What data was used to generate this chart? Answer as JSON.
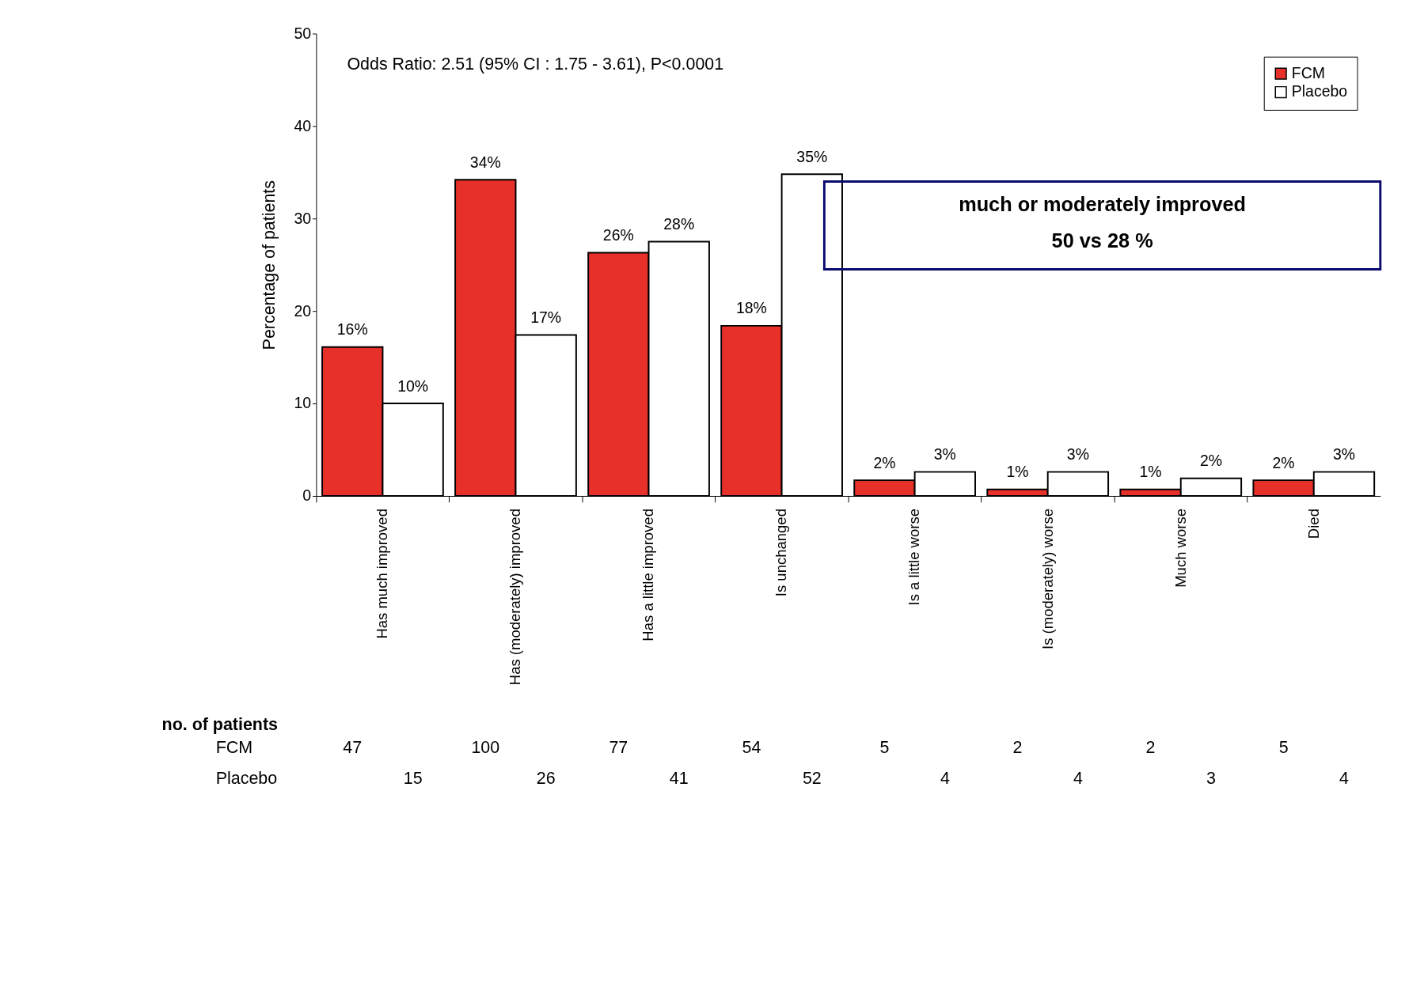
{
  "chart_data": {
    "type": "bar",
    "ylabel": "Percentage of patients",
    "categories": [
      "Has much improved",
      "Has (moderately) improved",
      "Has a little improved",
      "Is unchanged",
      "Is a little worse",
      "Is (moderately) worse",
      "Much worse",
      "Died"
    ],
    "series": [
      {
        "name": "FCM",
        "color": "#e8302a",
        "values": [
          16.1,
          34.2,
          26.3,
          18.4,
          1.7,
          0.7,
          0.7,
          1.7
        ],
        "value_labels": [
          "16%",
          "34%",
          "26%",
          "18%",
          "2%",
          "1%",
          "1%",
          "2%"
        ]
      },
      {
        "name": "Placebo",
        "color": "#ffffff",
        "values": [
          10,
          17.4,
          27.5,
          34.8,
          2.6,
          2.6,
          1.9,
          2.6
        ],
        "value_labels": [
          "10%",
          "17%",
          "28%",
          "35%",
          "3%",
          "3%",
          "2%",
          "3%"
        ]
      }
    ],
    "ylim": [
      0,
      50
    ],
    "yticks": [
      0,
      10,
      20,
      30,
      40,
      50
    ],
    "grid": false,
    "legend": "top right",
    "annotations": [
      "Odds Ratio: 2.51 (95% CI : 1.75 - 3.61), P<0.0001",
      "much or moderately improved",
      "50 vs 28 %",
      "no. of patients",
      "FCM",
      "47",
      "100",
      "77",
      "54",
      "5",
      "2",
      "2",
      "5",
      "Placebo",
      "15",
      "26",
      "41",
      "52",
      "4",
      "4",
      "3",
      "4"
    ]
  }
}
